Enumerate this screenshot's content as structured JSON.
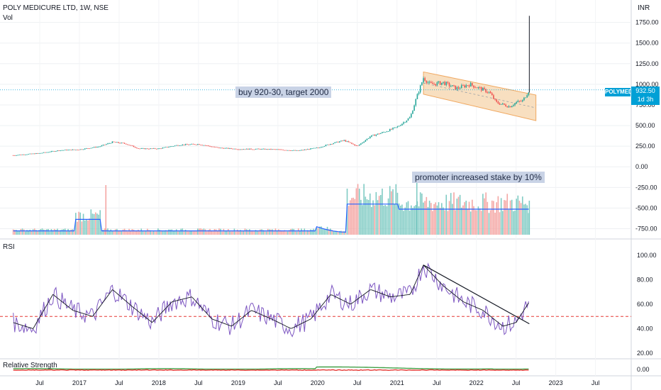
{
  "header": {
    "title": "POLY MEDICURE LTD, 1W, NSE",
    "volume_label": "Vol",
    "rsi_label": "RSI",
    "rs_label": "Relative Strength",
    "currency": "INR"
  },
  "annotations": {
    "buy_note": "buy 920-30, target 2000",
    "promoter_note": "promoter increased stake by 10%"
  },
  "last_price": {
    "symbol": "POLYMED",
    "price": "932.50",
    "countdown": "1d 3h",
    "value": 932.5
  },
  "colors": {
    "up": "#26a69a",
    "down": "#ef5350",
    "volume_ma": "#2962ff",
    "rsi": "#7e57c2",
    "rsi_ma": "#131722",
    "rsi_midline": "#e53935",
    "channel_fill": "#f8dfc0",
    "channel_line": "#f0a860",
    "rs_up": "#43a047",
    "rs_down": "#e53935",
    "price_line": "#00a0d6",
    "badge": "#00a0d6"
  },
  "chart_data": [
    {
      "type": "candlestick",
      "pane": "price",
      "y_axis_ticks": [
        "1750.00",
        "1500.00",
        "1250.00",
        "1000.00",
        "750.00",
        "500.00",
        "250.00",
        "0.00",
        "-250.00",
        "-500.00",
        "-750.00"
      ],
      "x_axis_ticks": [
        "Jul",
        "2017",
        "Jul",
        "2018",
        "Jul",
        "2019",
        "Jul",
        "2020",
        "Jul",
        "2021",
        "Jul",
        "2022",
        "Jul",
        "2023",
        "Jul"
      ],
      "ylim": [
        -780,
        1850
      ],
      "series_points": [
        [
          "2016-03",
          140
        ],
        [
          "2016-07",
          165
        ],
        [
          "2016-10",
          200
        ],
        [
          "2017-01",
          210
        ],
        [
          "2017-04",
          245
        ],
        [
          "2017-06",
          300
        ],
        [
          "2017-08",
          280
        ],
        [
          "2017-10",
          220
        ],
        [
          "2018-01",
          220
        ],
        [
          "2018-04",
          265
        ],
        [
          "2018-07",
          275
        ],
        [
          "2018-10",
          230
        ],
        [
          "2019-01",
          215
        ],
        [
          "2019-04",
          215
        ],
        [
          "2019-07",
          210
        ],
        [
          "2019-10",
          195
        ],
        [
          "2020-01",
          230
        ],
        [
          "2020-03",
          280
        ],
        [
          "2020-05",
          320
        ],
        [
          "2020-07",
          250
        ],
        [
          "2020-09",
          370
        ],
        [
          "2020-11",
          420
        ],
        [
          "2021-01",
          480
        ],
        [
          "2021-03",
          600
        ],
        [
          "2021-04",
          850
        ],
        [
          "2021-05",
          1080
        ],
        [
          "2021-06",
          1000
        ],
        [
          "2021-08",
          1020
        ],
        [
          "2021-10",
          950
        ],
        [
          "2021-12",
          1000
        ],
        [
          "2022-03",
          900
        ],
        [
          "2022-04",
          780
        ],
        [
          "2022-06",
          730
        ],
        [
          "2022-07",
          780
        ],
        [
          "2022-08",
          800
        ],
        [
          "2022-09",
          932.5
        ]
      ],
      "spike_high": 1830,
      "channel": {
        "start": [
          "2021-05",
          1150,
          880
        ],
        "end": [
          "2022-10",
          870,
          560
        ],
        "midline": true
      }
    },
    {
      "type": "bar",
      "pane": "volume",
      "note": "weekly volume histogram with moving average",
      "tall_bars": [
        [
          "2017-05",
          "down"
        ],
        [
          "2021-04",
          "up"
        ],
        [
          "2022-09",
          "up"
        ]
      ]
    },
    {
      "type": "line",
      "pane": "rsi",
      "ylim": [
        20,
        100
      ],
      "y_axis_ticks": [
        "100.00",
        "80.00",
        "60.00",
        "40.00",
        "20.00"
      ],
      "midline": 50,
      "series": [
        {
          "values": [
            [
              "2016-03",
              45
            ],
            [
              "2016-06",
              40
            ],
            [
              "2016-09",
              68
            ],
            [
              "2016-12",
              55
            ],
            [
              "2017-03",
              50
            ],
            [
              "2017-06",
              72
            ],
            [
              "2017-09",
              58
            ],
            [
              "2017-12",
              45
            ],
            [
              "2018-03",
              62
            ],
            [
              "2018-06",
              66
            ],
            [
              "2018-09",
              48
            ],
            [
              "2018-12",
              42
            ],
            [
              "2019-03",
              55
            ],
            [
              "2019-06",
              48
            ],
            [
              "2019-09",
              40
            ],
            [
              "2019-12",
              48
            ],
            [
              "2020-03",
              68
            ],
            [
              "2020-06",
              60
            ],
            [
              "2020-09",
              72
            ],
            [
              "2020-12",
              66
            ],
            [
              "2021-03",
              68
            ],
            [
              "2021-05",
              92
            ],
            [
              "2021-08",
              75
            ],
            [
              "2021-11",
              62
            ],
            [
              "2022-02",
              55
            ],
            [
              "2022-05",
              42
            ],
            [
              "2022-07",
              45
            ],
            [
              "2022-09",
              62
            ]
          ]
        }
      ],
      "trendline": [
        [
          "2021-05",
          92
        ],
        [
          "2022-09",
          44
        ]
      ]
    },
    {
      "type": "area",
      "pane": "relative_strength",
      "y_axis_ticks": [
        "0.00"
      ]
    }
  ]
}
